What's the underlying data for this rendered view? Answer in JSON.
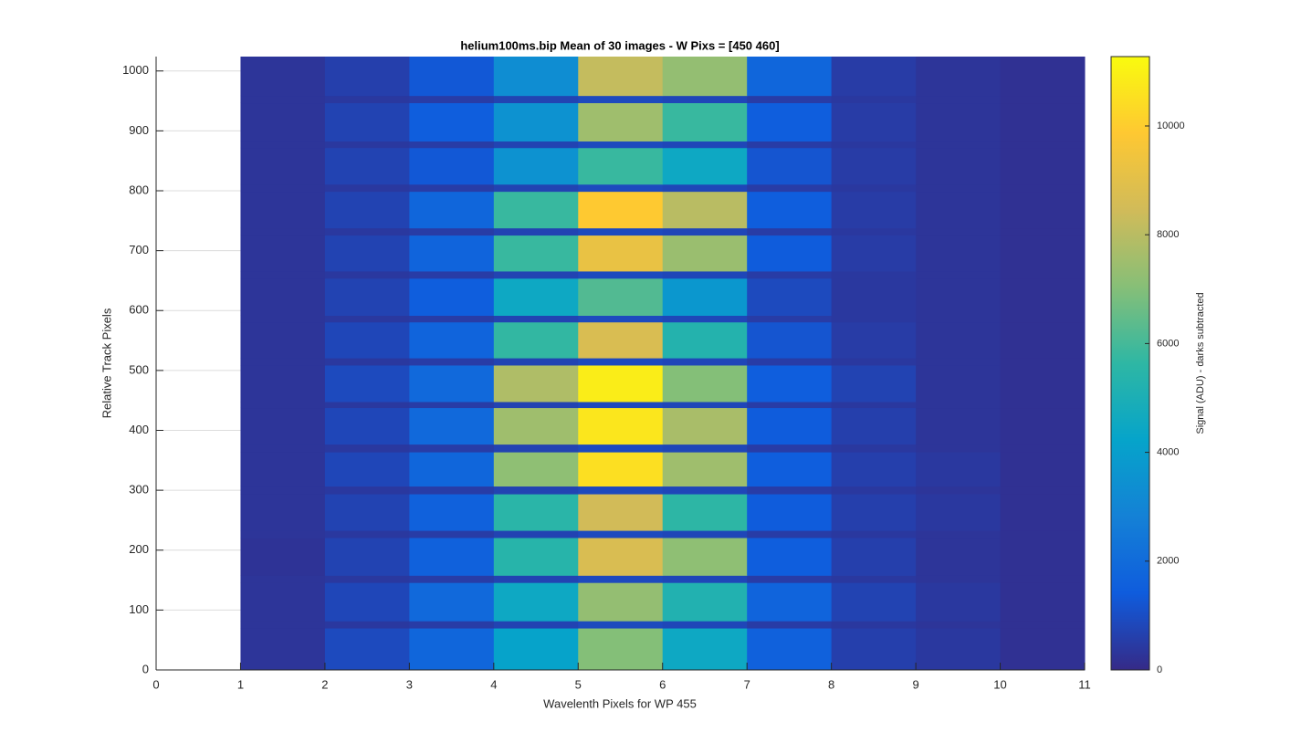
{
  "chart_data": {
    "type": "heatmap",
    "title": "helium100ms.bip  Mean of 30 images - W Pixs = [450  460]",
    "xlabel": "Wavelenth Pixels for WP 455",
    "ylabel": "Relative Track Pixels",
    "colorbar_label": "Signal (ADU) - darks subtracted",
    "x_edges": [
      1,
      2,
      3,
      4,
      5,
      6,
      7,
      8,
      9,
      10,
      11
    ],
    "y_edges": [
      0,
      70,
      82,
      146,
      158,
      221,
      233,
      294,
      307,
      364,
      377,
      438,
      448,
      509,
      521,
      581,
      592,
      654,
      666,
      726,
      738,
      799,
      811,
      872,
      883,
      947,
      959,
      1024
    ],
    "z": [
      [
        300,
        900,
        1800,
        4200,
        7000,
        4500,
        1600,
        600,
        400,
        200
      ],
      [
        300,
        400,
        500,
        700,
        900,
        800,
        500,
        400,
        300,
        200
      ],
      [
        300,
        800,
        1900,
        4500,
        7300,
        5200,
        1700,
        700,
        400,
        200
      ],
      [
        300,
        400,
        500,
        700,
        900,
        800,
        500,
        400,
        300,
        200
      ],
      [
        250,
        700,
        1600,
        5400,
        8700,
        7200,
        1500,
        600,
        300,
        200
      ],
      [
        300,
        400,
        500,
        700,
        900,
        800,
        500,
        400,
        300,
        200
      ],
      [
        300,
        700,
        1600,
        5500,
        8500,
        5600,
        1400,
        600,
        400,
        200
      ],
      [
        300,
        400,
        500,
        700,
        900,
        800,
        500,
        400,
        300,
        200
      ],
      [
        300,
        800,
        1800,
        7200,
        10500,
        7500,
        1500,
        600,
        400,
        200
      ],
      [
        300,
        400,
        500,
        700,
        900,
        800,
        500,
        400,
        300,
        200
      ],
      [
        300,
        800,
        1900,
        7500,
        10700,
        7700,
        1400,
        600,
        300,
        200
      ],
      [
        300,
        400,
        500,
        700,
        900,
        800,
        500,
        400,
        300,
        200
      ],
      [
        300,
        900,
        1900,
        7800,
        10900,
        7000,
        1500,
        700,
        300,
        200
      ],
      [
        300,
        400,
        500,
        700,
        900,
        800,
        500,
        400,
        300,
        200
      ],
      [
        300,
        800,
        1700,
        5700,
        8700,
        5300,
        1200,
        500,
        300,
        200
      ],
      [
        300,
        400,
        500,
        700,
        900,
        800,
        500,
        400,
        300,
        200
      ],
      [
        300,
        700,
        1500,
        4500,
        6200,
        3700,
        900,
        400,
        300,
        200
      ],
      [
        300,
        400,
        500,
        700,
        900,
        800,
        500,
        400,
        300,
        200
      ],
      [
        300,
        700,
        1700,
        5800,
        9200,
        7400,
        1400,
        500,
        300,
        200
      ],
      [
        300,
        400,
        500,
        700,
        900,
        800,
        500,
        400,
        300,
        200
      ],
      [
        300,
        700,
        1800,
        5800,
        9900,
        8000,
        1500,
        500,
        300,
        200
      ],
      [
        300,
        400,
        500,
        700,
        900,
        800,
        500,
        400,
        300,
        200
      ],
      [
        300,
        700,
        1300,
        3500,
        5800,
        4500,
        1200,
        500,
        300,
        200
      ],
      [
        300,
        400,
        500,
        700,
        900,
        800,
        500,
        400,
        300,
        200
      ],
      [
        300,
        700,
        1500,
        3500,
        7500,
        5800,
        1500,
        500,
        300,
        200
      ],
      [
        300,
        400,
        500,
        700,
        900,
        800,
        500,
        400,
        300,
        200
      ],
      [
        300,
        600,
        1300,
        3300,
        8200,
        7300,
        1800,
        500,
        300,
        200
      ]
    ],
    "xlim": [
      0,
      11
    ],
    "xticks": [
      0,
      1,
      2,
      3,
      4,
      5,
      6,
      7,
      8,
      9,
      10,
      11
    ],
    "ylim": [
      0,
      1024
    ],
    "yticks": [
      0,
      100,
      200,
      300,
      400,
      500,
      600,
      700,
      800,
      900,
      1000
    ],
    "clim": [
      0,
      11275
    ],
    "cticks": [
      0,
      2000,
      4000,
      6000,
      8000,
      10000
    ],
    "colormap": [
      "#352a87",
      "#0f5cdd",
      "#1481d6",
      "#06a4ca",
      "#2eb7a4",
      "#87bf77",
      "#d1bb59",
      "#fec832",
      "#f9fb0e"
    ],
    "grid": true
  }
}
